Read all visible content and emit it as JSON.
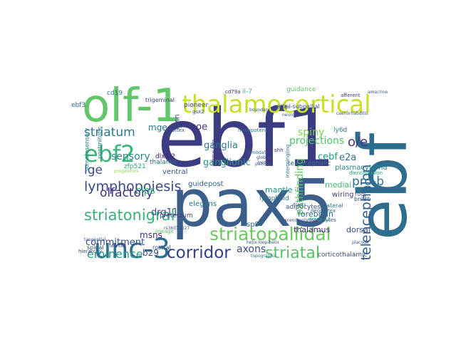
{
  "words": [
    {
      "text": "ebf1",
      "color": "#3b3c82"
    },
    {
      "text": "pax5",
      "color": "#3b5f8a"
    },
    {
      "text": "ebf",
      "color": "#2f6d8e"
    },
    {
      "text": "olf-1",
      "color": "#62c76a"
    },
    {
      "text": "thalamocortical",
      "color": "#c8e02a"
    },
    {
      "text": "unc-3",
      "color": "#2b6f8e"
    },
    {
      "text": "ebf2",
      "color": "#37b678"
    },
    {
      "text": "lymphopoiesis",
      "color": "#3a4a8c"
    },
    {
      "text": "striatopallidal",
      "color": "#6bc95e"
    },
    {
      "text": "striatonigral",
      "color": "#3ab17b"
    },
    {
      "text": "corridor",
      "color": "#35408a"
    },
    {
      "text": "striatal",
      "color": "#56c466"
    },
    {
      "text": "telencephalon",
      "color": "#2f5f8d"
    },
    {
      "text": "striatum",
      "color": "#2a7b8e"
    },
    {
      "text": "eminence",
      "color": "#2b9c89"
    },
    {
      "text": "olfactory",
      "color": "#46317e"
    },
    {
      "text": "lge",
      "color": "#3d4a89"
    },
    {
      "text": "o/e",
      "color": "#48327f"
    },
    {
      "text": "pro-b",
      "color": "#2c758e"
    },
    {
      "text": "sensory",
      "color": "#2d858d"
    },
    {
      "text": "ganglia",
      "color": "#2e7c8d"
    },
    {
      "text": "spiny",
      "color": "#7ad151"
    },
    {
      "text": "projections",
      "color": "#4fc26b"
    },
    {
      "text": "ganglionic",
      "color": "#30968a"
    },
    {
      "text": "pathfinding",
      "color": "#5ec962"
    },
    {
      "text": "axons",
      "color": "#3f4788"
    },
    {
      "text": "commitment",
      "color": "#3b518b"
    },
    {
      "text": "clps",
      "color": "#37b678"
    },
    {
      "text": "msns",
      "color": "#472c7a"
    },
    {
      "text": "b29",
      "color": "#3e4989"
    },
    {
      "text": "coe",
      "color": "#48327f"
    },
    {
      "text": "mge",
      "color": "#2a788e"
    },
    {
      "text": "drg11",
      "color": "#3e4a89"
    },
    {
      "text": "e2a",
      "color": "#2d708e"
    },
    {
      "text": "plasmacytoma",
      "color": "#26828e"
    },
    {
      "text": "cebf",
      "color": "#1fa187"
    },
    {
      "text": "mantle",
      "color": "#20928c"
    },
    {
      "text": "forebrain",
      "color": "#2d708e"
    },
    {
      "text": "dorsal",
      "color": "#3b528b"
    },
    {
      "text": "medial",
      "color": "#3dbc74"
    },
    {
      "text": "wiring",
      "color": "#433e85"
    },
    {
      "text": "thalamus",
      "color": "#472d7b"
    },
    {
      "text": "sp9",
      "color": "#31688e"
    },
    {
      "text": "guidepost",
      "color": "#31688e"
    },
    {
      "text": "elegans",
      "color": "#2c728e"
    },
    {
      "text": "ventral",
      "color": "#3b528b"
    },
    {
      "text": "thalamic",
      "color": "#2d708e"
    },
    {
      "text": "msn",
      "color": "#3e4a89"
    },
    {
      "text": "pioneer",
      "color": "#414487"
    },
    {
      "text": "cd19",
      "color": "#2c718e"
    },
    {
      "text": "ebf3",
      "color": "#355f8d"
    },
    {
      "text": "il-7",
      "color": "#3fbc73"
    },
    {
      "text": "guidance",
      "color": "#5cc863"
    },
    {
      "text": "ly6d",
      "color": "#2a788e"
    },
    {
      "text": "trigeminal",
      "color": "#3e4989"
    },
    {
      "text": "telencephalic",
      "color": "#2e6e8e"
    },
    {
      "text": "pallial-subpallial",
      "color": "#3b518b"
    },
    {
      "text": "pretectum",
      "color": "#3f4788"
    },
    {
      "text": "zfp521",
      "color": "#24aa83"
    },
    {
      "text": "dlx1/2",
      "color": "#482576"
    },
    {
      "text": "lymphocytes",
      "color": "#3b528b"
    },
    {
      "text": "adipocytes",
      "color": "#3b528b"
    },
    {
      "text": "lymphoid",
      "color": "#2a768e"
    },
    {
      "text": "corticothalamic",
      "color": "#3b528b"
    },
    {
      "text": "brn3b",
      "color": "#3b528b"
    },
    {
      "text": "dorsp-12",
      "color": "#20a386"
    },
    {
      "text": "lateral",
      "color": "#2a788e"
    },
    {
      "text": "diencephalon",
      "color": "#22a785"
    },
    {
      "text": "root",
      "color": "#3b528b"
    },
    {
      "text": "postmitotic",
      "color": "#2a788e"
    },
    {
      "text": "somatosensory",
      "color": "#27808e"
    },
    {
      "text": "multipotent",
      "color": "#2c728e"
    },
    {
      "text": "interneurons",
      "color": "#46337f"
    },
    {
      "text": "lambda5",
      "color": "#31688e"
    },
    {
      "text": "shh",
      "color": "#46307e"
    },
    {
      "text": "spinal",
      "color": "#3b518b"
    },
    {
      "text": "rostral",
      "color": "#3b528b"
    },
    {
      "text": "hierarchy",
      "color": "#3e4989"
    },
    {
      "text": "identity",
      "color": "#472d7b"
    },
    {
      "text": "neocortex",
      "color": "#31688e"
    },
    {
      "text": "topographic",
      "color": "#2c728e"
    },
    {
      "text": "motor",
      "color": "#3e4a89"
    },
    {
      "text": "gsx2",
      "color": "#3b528b"
    },
    {
      "text": "cortex",
      "color": "#3b528b"
    },
    {
      "text": "neuron",
      "color": "#3b528b"
    },
    {
      "text": "caenorhabditis",
      "color": "#3b528b"
    },
    {
      "text": "afferent",
      "color": "#433e85"
    },
    {
      "text": "intermingling",
      "color": "#2a788e"
    },
    {
      "text": "lineage",
      "color": "#5cc863"
    },
    {
      "text": "progenitors",
      "color": "#8fd744"
    },
    {
      "text": "globus",
      "color": "#3b528b"
    },
    {
      "text": "pallidus",
      "color": "#3b528b"
    },
    {
      "text": "tangential",
      "color": "#3b528b"
    },
    {
      "text": "cd79a",
      "color": "#472d7b"
    },
    {
      "text": "rs36071027",
      "color": "#3b528b"
    },
    {
      "text": "helix-loop-helix",
      "color": "#3b528b"
    },
    {
      "text": "boundary",
      "color": "#3b528b"
    },
    {
      "text": "placode",
      "color": "#3b528b"
    },
    {
      "text": "tracts",
      "color": "#3b528b"
    },
    {
      "text": "ascending",
      "color": "#3b528b"
    },
    {
      "text": "amacrine",
      "color": "#3b528b"
    }
  ]
}
